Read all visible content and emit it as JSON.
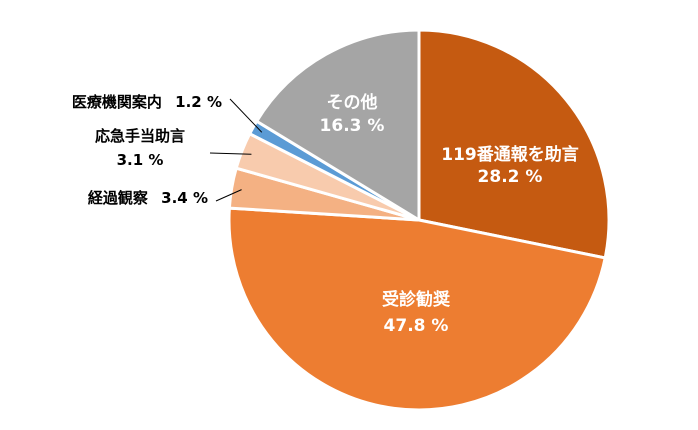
{
  "chart_data": {
    "type": "pie",
    "start": "12 o'clock",
    "direction": "clockwise",
    "slices": [
      {
        "label": "119番通報を助言",
        "value": 28.2,
        "value_text": "28.2 %",
        "color": "#C55A11"
      },
      {
        "label": "受診勧奨",
        "value": 47.8,
        "value_text": "47.8 %",
        "color": "#ED7D31"
      },
      {
        "label": "経過観察",
        "value": 3.4,
        "value_text": "3.4 %",
        "color": "#F4B183"
      },
      {
        "label": "応急手当助言",
        "value": 3.1,
        "value_text": "3.1 %",
        "color": "#F8CBAD"
      },
      {
        "label": "医療機関案内",
        "value": 1.2,
        "value_text": "1.2 %",
        "color": "#5B9BD5"
      },
      {
        "label": "その他",
        "value": 16.3,
        "value_text": "16.3 %",
        "color": "#A5A5A5"
      }
    ]
  }
}
